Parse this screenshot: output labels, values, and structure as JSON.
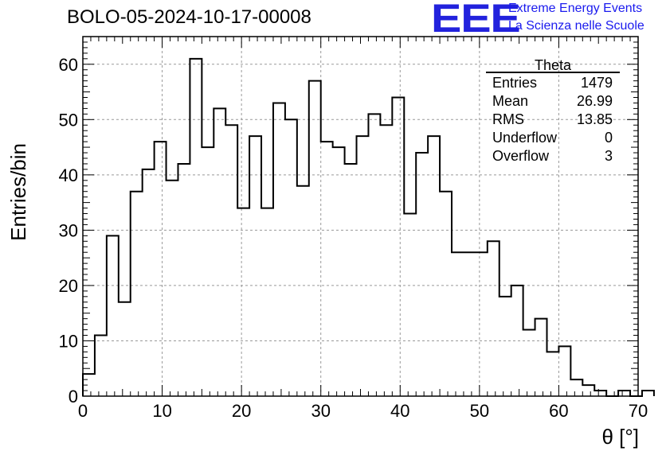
{
  "title": "BOLO-05-2024-10-17-00008",
  "logo": {
    "mark": "EEE",
    "line1": "Extreme Energy Events",
    "line2": "La Scienza nelle Scuole",
    "color": "#2222dd"
  },
  "stats": {
    "name": "Theta",
    "rows": [
      {
        "label": "Entries",
        "value": "1479"
      },
      {
        "label": "Mean",
        "value": "26.99"
      },
      {
        "label": "RMS",
        "value": "13.85"
      },
      {
        "label": "Underflow",
        "value": "0"
      },
      {
        "label": "Overflow",
        "value": "3"
      }
    ]
  },
  "chart_data": {
    "type": "bar",
    "style": "step-histogram",
    "xlabel": "θ [°]",
    "ylabel": "Entries/bin",
    "xlim": [
      0,
      70
    ],
    "ylim": [
      0,
      65
    ],
    "xticks": [
      0,
      10,
      20,
      30,
      40,
      50,
      60,
      70
    ],
    "yticks": [
      0,
      10,
      20,
      30,
      40,
      50,
      60
    ],
    "grid": true,
    "bin_width": 1.5,
    "bin_edges_start": 0,
    "values": [
      4,
      11,
      29,
      17,
      37,
      41,
      46,
      39,
      42,
      61,
      45,
      52,
      49,
      34,
      47,
      34,
      53,
      50,
      38,
      57,
      46,
      45,
      42,
      47,
      51,
      49,
      54,
      33,
      44,
      47,
      37,
      26,
      26,
      26,
      28,
      18,
      20,
      12,
      14,
      8,
      9,
      3,
      2,
      1,
      0,
      1,
      0,
      1
    ]
  }
}
